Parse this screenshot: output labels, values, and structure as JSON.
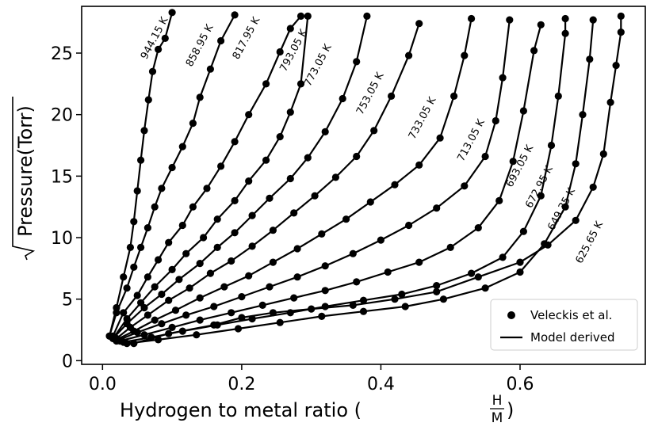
{
  "chart_data": {
    "type": "line",
    "xlabel": "Hydrogen to metal ratio",
    "xlabel_fraction": {
      "num": "H",
      "den": "M"
    },
    "ylabel": "Pressure(Torr)",
    "ylabel_sqrt": true,
    "xlim": [
      -0.03,
      0.78
    ],
    "ylim": [
      -0.3,
      28.8
    ],
    "xticks": [
      0.0,
      0.2,
      0.4,
      0.6
    ],
    "xtick_labels": [
      "0.0",
      "0.2",
      "0.4",
      "0.6"
    ],
    "yticks": [
      0,
      5,
      10,
      15,
      20,
      25
    ],
    "ytick_labels": [
      "0",
      "5",
      "10",
      "15",
      "20",
      "25"
    ],
    "grid": false,
    "legend": {
      "placement": "bottom-right",
      "entries": [
        {
          "label": "Veleckis et al.",
          "marker": "circle"
        },
        {
          "label": "Model derived",
          "marker": "line"
        }
      ]
    },
    "series": [
      {
        "name": "944.15 K",
        "x_end": 0.105,
        "points": [
          [
            0.01,
            2.0
          ],
          [
            0.02,
            4.3
          ],
          [
            0.03,
            6.8
          ],
          [
            0.04,
            9.2
          ],
          [
            0.045,
            11.3
          ],
          [
            0.05,
            13.8
          ],
          [
            0.055,
            16.3
          ],
          [
            0.06,
            18.7
          ],
          [
            0.066,
            21.2
          ],
          [
            0.072,
            23.5
          ],
          [
            0.08,
            25.3
          ],
          [
            0.09,
            26.2
          ],
          [
            0.1,
            28.3
          ]
        ],
        "label_x": 0.075,
        "label_y": 26.2
      },
      {
        "name": "858.95 K",
        "x_end": 0.19,
        "points": [
          [
            0.01,
            2.0
          ],
          [
            0.02,
            3.9
          ],
          [
            0.035,
            5.9
          ],
          [
            0.045,
            7.6
          ],
          [
            0.055,
            9.2
          ],
          [
            0.065,
            10.8
          ],
          [
            0.075,
            12.5
          ],
          [
            0.085,
            14.0
          ],
          [
            0.1,
            15.7
          ],
          [
            0.115,
            17.4
          ],
          [
            0.13,
            19.3
          ],
          [
            0.14,
            21.4
          ],
          [
            0.155,
            23.7
          ],
          [
            0.17,
            26.0
          ],
          [
            0.19,
            28.1
          ]
        ],
        "label_x": 0.14,
        "label_y": 25.6
      },
      {
        "name": "817.95 K",
        "x_end": 0.285,
        "points": [
          [
            0.015,
            2.0
          ],
          [
            0.03,
            3.9
          ],
          [
            0.05,
            5.3
          ],
          [
            0.065,
            6.8
          ],
          [
            0.08,
            8.2
          ],
          [
            0.095,
            9.6
          ],
          [
            0.115,
            11.0
          ],
          [
            0.13,
            12.5
          ],
          [
            0.15,
            14.0
          ],
          [
            0.17,
            15.8
          ],
          [
            0.19,
            17.8
          ],
          [
            0.21,
            20.0
          ],
          [
            0.235,
            22.5
          ],
          [
            0.255,
            25.1
          ],
          [
            0.27,
            27.0
          ],
          [
            0.285,
            28.0
          ]
        ],
        "label_x": 0.207,
        "label_y": 26.2
      },
      {
        "name": "793.05 K",
        "x_end": 0.295,
        "points": [
          [
            0.015,
            1.8
          ],
          [
            0.035,
            3.4
          ],
          [
            0.055,
            4.7
          ],
          [
            0.075,
            6.0
          ],
          [
            0.1,
            7.4
          ],
          [
            0.12,
            8.7
          ],
          [
            0.145,
            10.0
          ],
          [
            0.165,
            11.5
          ],
          [
            0.19,
            13.0
          ],
          [
            0.21,
            14.6
          ],
          [
            0.235,
            16.3
          ],
          [
            0.255,
            18.2
          ],
          [
            0.27,
            20.2
          ],
          [
            0.285,
            22.5
          ],
          [
            0.295,
            28.0
          ]
        ],
        "label_x": 0.275,
        "label_y": 25.2
      },
      {
        "name": "773.05 K",
        "x_end": 0.38,
        "points": [
          [
            0.015,
            1.8
          ],
          [
            0.035,
            3.0
          ],
          [
            0.06,
            4.3
          ],
          [
            0.085,
            5.4
          ],
          [
            0.11,
            6.6
          ],
          [
            0.14,
            7.9
          ],
          [
            0.165,
            9.2
          ],
          [
            0.19,
            10.4
          ],
          [
            0.215,
            11.8
          ],
          [
            0.24,
            13.2
          ],
          [
            0.27,
            14.8
          ],
          [
            0.295,
            16.5
          ],
          [
            0.32,
            18.6
          ],
          [
            0.345,
            21.3
          ],
          [
            0.365,
            24.3
          ],
          [
            0.38,
            28.0
          ]
        ],
        "label_x": 0.31,
        "label_y": 24.0
      },
      {
        "name": "753.05 K",
        "x_end": 0.455,
        "points": [
          [
            0.02,
            1.8
          ],
          [
            0.04,
            2.7
          ],
          [
            0.065,
            3.7
          ],
          [
            0.095,
            4.9
          ],
          [
            0.125,
            5.9
          ],
          [
            0.155,
            7.1
          ],
          [
            0.185,
            8.1
          ],
          [
            0.215,
            9.3
          ],
          [
            0.245,
            10.6
          ],
          [
            0.275,
            12.0
          ],
          [
            0.305,
            13.4
          ],
          [
            0.335,
            14.9
          ],
          [
            0.365,
            16.6
          ],
          [
            0.39,
            18.7
          ],
          [
            0.415,
            21.5
          ],
          [
            0.44,
            24.8
          ],
          [
            0.455,
            27.4
          ]
        ],
        "label_x": 0.385,
        "label_y": 21.7
      },
      {
        "name": "733.05 K",
        "x_end": 0.525,
        "points": [
          [
            0.02,
            1.7
          ],
          [
            0.045,
            2.4
          ],
          [
            0.075,
            3.3
          ],
          [
            0.105,
            4.1
          ],
          [
            0.14,
            5.1
          ],
          [
            0.175,
            6.0
          ],
          [
            0.21,
            6.9
          ],
          [
            0.245,
            8.0
          ],
          [
            0.28,
            9.1
          ],
          [
            0.315,
            10.3
          ],
          [
            0.35,
            11.5
          ],
          [
            0.385,
            12.9
          ],
          [
            0.42,
            14.3
          ],
          [
            0.455,
            15.9
          ],
          [
            0.485,
            18.1
          ],
          [
            0.505,
            21.5
          ],
          [
            0.52,
            24.8
          ],
          [
            0.53,
            27.8
          ]
        ],
        "label_x": 0.46,
        "label_y": 19.7
      },
      {
        "name": "713.05 K",
        "x_end": 0.585,
        "points": [
          [
            0.02,
            1.6
          ],
          [
            0.05,
            2.3
          ],
          [
            0.085,
            3.0
          ],
          [
            0.12,
            3.7
          ],
          [
            0.16,
            4.4
          ],
          [
            0.2,
            5.2
          ],
          [
            0.24,
            6.0
          ],
          [
            0.28,
            6.8
          ],
          [
            0.32,
            7.7
          ],
          [
            0.36,
            8.7
          ],
          [
            0.4,
            9.8
          ],
          [
            0.44,
            11.0
          ],
          [
            0.48,
            12.4
          ],
          [
            0.52,
            14.2
          ],
          [
            0.55,
            16.6
          ],
          [
            0.565,
            19.5
          ],
          [
            0.575,
            23.0
          ],
          [
            0.585,
            27.7
          ]
        ],
        "label_x": 0.53,
        "label_y": 17.9
      },
      {
        "name": "693.05 K",
        "x_end": 0.625,
        "points": [
          [
            0.025,
            1.6
          ],
          [
            0.06,
            2.1
          ],
          [
            0.1,
            2.7
          ],
          [
            0.14,
            3.3
          ],
          [
            0.185,
            3.9
          ],
          [
            0.23,
            4.5
          ],
          [
            0.275,
            5.1
          ],
          [
            0.32,
            5.7
          ],
          [
            0.365,
            6.4
          ],
          [
            0.41,
            7.2
          ],
          [
            0.455,
            8.0
          ],
          [
            0.5,
            9.2
          ],
          [
            0.54,
            10.8
          ],
          [
            0.57,
            13.0
          ],
          [
            0.59,
            16.2
          ],
          [
            0.605,
            20.3
          ],
          [
            0.62,
            25.2
          ],
          [
            0.63,
            27.3
          ]
        ],
        "label_x": 0.6,
        "label_y": 15.8
      },
      {
        "name": "672.95 K",
        "x_end": 0.665,
        "points": [
          [
            0.03,
            1.5
          ],
          [
            0.07,
            1.9
          ],
          [
            0.115,
            2.4
          ],
          [
            0.165,
            2.9
          ],
          [
            0.215,
            3.4
          ],
          [
            0.27,
            3.9
          ],
          [
            0.32,
            4.4
          ],
          [
            0.375,
            4.9
          ],
          [
            0.43,
            5.4
          ],
          [
            0.48,
            6.1
          ],
          [
            0.53,
            7.1
          ],
          [
            0.575,
            8.4
          ],
          [
            0.605,
            10.5
          ],
          [
            0.63,
            13.4
          ],
          [
            0.645,
            17.5
          ],
          [
            0.655,
            21.5
          ],
          [
            0.665,
            26.6
          ],
          [
            0.665,
            27.8
          ]
        ],
        "label_x": 0.628,
        "label_y": 14.1
      },
      {
        "name": "649.35 K",
        "x_end": 0.705,
        "points": [
          [
            0.035,
            1.4
          ],
          [
            0.08,
            1.7
          ],
          [
            0.135,
            2.1
          ],
          [
            0.195,
            2.6
          ],
          [
            0.255,
            3.1
          ],
          [
            0.315,
            3.6
          ],
          [
            0.375,
            4.0
          ],
          [
            0.435,
            4.4
          ],
          [
            0.49,
            5.0
          ],
          [
            0.55,
            5.9
          ],
          [
            0.6,
            7.2
          ],
          [
            0.635,
            9.5
          ],
          [
            0.665,
            12.5
          ],
          [
            0.68,
            16.0
          ],
          [
            0.69,
            20.0
          ],
          [
            0.7,
            24.5
          ],
          [
            0.705,
            27.7
          ]
        ],
        "label_x": 0.66,
        "label_y": 12.3
      },
      {
        "name": "625.65 K",
        "x_end": 0.745,
        "points": [
          [
            0.045,
            1.4
          ],
          [
            0.095,
            2.2
          ],
          [
            0.16,
            2.9
          ],
          [
            0.2,
            3.5
          ],
          [
            0.245,
            3.9
          ],
          [
            0.3,
            4.2
          ],
          [
            0.36,
            4.5
          ],
          [
            0.42,
            5.0
          ],
          [
            0.48,
            5.6
          ],
          [
            0.54,
            6.8
          ],
          [
            0.6,
            8.0
          ],
          [
            0.64,
            9.4
          ],
          [
            0.68,
            11.4
          ],
          [
            0.705,
            14.1
          ],
          [
            0.72,
            16.8
          ],
          [
            0.73,
            21.0
          ],
          [
            0.738,
            24.0
          ],
          [
            0.745,
            26.7
          ],
          [
            0.745,
            28.0
          ]
        ],
        "label_x": 0.7,
        "label_y": 9.6
      }
    ]
  }
}
